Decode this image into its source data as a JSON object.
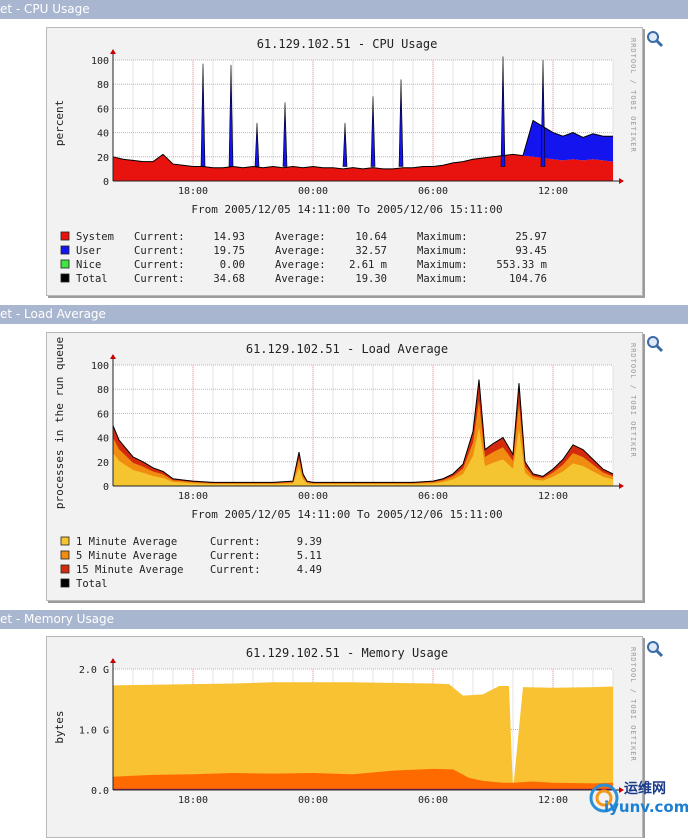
{
  "colors": {
    "header_bg": "#a9b6cf",
    "system": "#e8130e",
    "user": "#1414ee",
    "nice": "#3fe63f",
    "total": "#000000",
    "load1": "#f5c431",
    "load5": "#f08c0f",
    "load15": "#d42b0e",
    "mem_free": "#f9c233",
    "mem_used": "#ff6a00"
  },
  "sections": [
    {
      "header": "et - CPU Usage",
      "chart_title": "61.129.102.51 - CPU Usage",
      "ylabel": "percent",
      "side_text": "RRDTOOL / TOBI OETIKER",
      "range_text": "From 2005/12/05 14:11:00 To 2005/12/06 15:11:00",
      "legend": [
        {
          "color": "#e8130e",
          "name": "System",
          "cur_label": "Current:",
          "cur": "14.93",
          "avg_label": "Average:",
          "avg": "10.64",
          "max_label": "Maximum:",
          "max": "25.97"
        },
        {
          "color": "#1414ee",
          "name": "User",
          "cur_label": "Current:",
          "cur": "19.75",
          "avg_label": "Average:",
          "avg": "32.57",
          "max_label": "Maximum:",
          "max": "93.45"
        },
        {
          "color": "#3fe63f",
          "name": "Nice",
          "cur_label": "Current:",
          "cur": "0.00",
          "avg_label": "Average:",
          "avg": "2.61 m",
          "max_label": "Maximum:",
          "max": "553.33 m"
        },
        {
          "color": "#000000",
          "name": "Total",
          "cur_label": "Current:",
          "cur": "34.68",
          "avg_label": "Average:",
          "avg": "19.30",
          "max_label": "Maximum:",
          "max": "104.76"
        }
      ]
    },
    {
      "header": "et - Load Average",
      "chart_title": "61.129.102.51 - Load Average",
      "ylabel": "processes in the run queue",
      "side_text": "RRDTOOL / TOBI OETIKER",
      "range_text": "From 2005/12/05 14:11:00 To 2005/12/06 15:11:00",
      "legend": [
        {
          "color": "#f5c431",
          "name": "1 Minute Average",
          "cur_label": "Current:",
          "cur": "9.39"
        },
        {
          "color": "#f08c0f",
          "name": "5 Minute Average",
          "cur_label": "Current:",
          "cur": "5.11"
        },
        {
          "color": "#d42b0e",
          "name": "15 Minute Average",
          "cur_label": "Current:",
          "cur": "4.49"
        },
        {
          "color": "#000000",
          "name": "Total",
          "cur_label": "",
          "cur": ""
        }
      ]
    },
    {
      "header": "et - Memory Usage",
      "chart_title": "61.129.102.51 - Memory Usage",
      "ylabel": "bytes",
      "side_text": "RRDTOOL / TOBI OETIKER",
      "range_text": "",
      "legend": []
    }
  ],
  "watermark": "iyunv.com",
  "watermark_cn": "运维网",
  "chart_data": [
    {
      "type": "area",
      "title": "61.129.102.51 - CPU Usage",
      "ylabel": "percent",
      "xticks": [
        "18:00",
        "00:00",
        "06:00",
        "12:00"
      ],
      "xtick_pos": [
        4,
        10,
        16,
        22
      ],
      "xlim": [
        0,
        25
      ],
      "ylim": [
        0,
        100
      ],
      "yticks": [
        0,
        20,
        40,
        60,
        80,
        100
      ],
      "stacked": true,
      "series": [
        {
          "name": "System",
          "color": "#e8130e",
          "x": [
            0,
            0.5,
            1,
            1.5,
            2,
            2.5,
            3,
            3.5,
            4,
            4.5,
            5,
            5.5,
            6,
            6.5,
            7,
            7.5,
            8,
            8.5,
            9,
            9.5,
            10,
            10.5,
            11,
            11.5,
            12,
            12.5,
            13,
            13.5,
            14,
            14.5,
            15,
            15.5,
            16,
            16.5,
            17,
            17.5,
            18,
            18.5,
            19,
            19.5,
            20,
            20.5,
            21,
            21.5,
            22,
            22.5,
            23,
            23.5,
            24,
            24.5,
            25
          ],
          "values": [
            20,
            18,
            17,
            16,
            16,
            22,
            14,
            13,
            12,
            12,
            11,
            11,
            12,
            11,
            12,
            11,
            12,
            11,
            12,
            11,
            12,
            11,
            11,
            10,
            11,
            10,
            11,
            10,
            10,
            11,
            11,
            12,
            12,
            13,
            15,
            16,
            18,
            19,
            20,
            21,
            22,
            21,
            20,
            19,
            18,
            17,
            18,
            17,
            18,
            17,
            16
          ]
        },
        {
          "name": "User",
          "color": "#1414ee",
          "x": [
            0,
            0.5,
            1,
            1.5,
            2,
            2.5,
            3,
            3.5,
            4,
            4.5,
            5,
            5.5,
            6,
            6.5,
            7,
            7.5,
            8,
            8.5,
            9,
            9.5,
            10,
            10.5,
            11,
            11.5,
            12,
            12.5,
            13,
            13.5,
            14,
            14.5,
            15,
            15.5,
            16,
            16.5,
            17,
            17.5,
            18,
            18.5,
            19,
            19.5,
            20,
            20.5,
            21,
            21.5,
            22,
            22.5,
            23,
            23.5,
            24,
            24.5,
            25
          ],
          "values": [
            0,
            0,
            0,
            0,
            0,
            0,
            0,
            0,
            0,
            0,
            0,
            0,
            0,
            0,
            0,
            0,
            0,
            0,
            0,
            0,
            0,
            0,
            0,
            0,
            0,
            0,
            0,
            0,
            0,
            0,
            0,
            0,
            0,
            0,
            0,
            0,
            0,
            0,
            0,
            0,
            0,
            0,
            30,
            26,
            22,
            20,
            22,
            19,
            21,
            20,
            21
          ]
        },
        {
          "name": "Nice",
          "color": "#3fe63f",
          "values": []
        }
      ],
      "spikes": [
        {
          "x": 4.5,
          "y": 97
        },
        {
          "x": 5.9,
          "y": 96
        },
        {
          "x": 7.2,
          "y": 48
        },
        {
          "x": 8.6,
          "y": 65
        },
        {
          "x": 11.6,
          "y": 48
        },
        {
          "x": 13.0,
          "y": 70
        },
        {
          "x": 14.4,
          "y": 84
        },
        {
          "x": 19.5,
          "y": 103
        },
        {
          "x": 21.5,
          "y": 100
        }
      ]
    },
    {
      "type": "area",
      "title": "61.129.102.51 - Load Average",
      "ylabel": "processes in the run queue",
      "xticks": [
        "18:00",
        "00:00",
        "06:00",
        "12:00"
      ],
      "xtick_pos": [
        4,
        10,
        16,
        22
      ],
      "xlim": [
        0,
        25
      ],
      "ylim": [
        0,
        100
      ],
      "yticks": [
        0,
        20,
        40,
        60,
        80,
        100
      ],
      "series": [
        {
          "name": "1 Minute Average",
          "color": "#f5c431",
          "x": [
            0,
            0.3,
            0.6,
            1,
            1.5,
            2,
            2.5,
            3,
            3.5,
            4,
            5,
            6,
            7,
            8,
            9,
            9.3,
            9.5,
            9.7,
            10,
            11,
            12,
            13,
            14,
            15,
            16,
            16.5,
            17,
            17.5,
            18,
            18.3,
            18.6,
            19,
            19.5,
            20,
            20.3,
            20.6,
            21,
            21.5,
            22,
            22.5,
            23,
            23.5,
            24,
            24.5,
            25
          ],
          "values": [
            50,
            38,
            32,
            24,
            20,
            15,
            12,
            6,
            5,
            4,
            3,
            3,
            3,
            3,
            4,
            28,
            10,
            4,
            3,
            3,
            3,
            3,
            3,
            3,
            4,
            6,
            10,
            18,
            45,
            88,
            30,
            35,
            40,
            26,
            85,
            20,
            10,
            8,
            14,
            22,
            34,
            30,
            22,
            14,
            10
          ]
        },
        {
          "name": "5 Minute Average",
          "color": "#f08c0f",
          "x": [
            0,
            1,
            2,
            3,
            4,
            5,
            9,
            10,
            16,
            17,
            18,
            19,
            20,
            21,
            22,
            23,
            24,
            25
          ],
          "values": [
            32,
            28,
            20,
            10,
            6,
            4,
            4,
            4,
            4,
            8,
            20,
            28,
            30,
            14,
            18,
            26,
            20,
            12
          ]
        },
        {
          "name": "15 Minute Average",
          "color": "#d42b0e",
          "x": [
            0,
            1,
            2,
            3,
            4,
            5,
            9,
            10,
            16,
            17,
            18,
            19,
            20,
            21,
            22,
            23,
            24,
            25
          ],
          "values": [
            22,
            20,
            16,
            10,
            6,
            4,
            4,
            4,
            4,
            6,
            14,
            20,
            22,
            14,
            14,
            20,
            18,
            12
          ]
        }
      ]
    },
    {
      "type": "area",
      "title": "61.129.102.51 - Memory Usage",
      "ylabel": "bytes",
      "xticks": [
        "18:00",
        "00:00",
        "06:00",
        "12:00"
      ],
      "xtick_pos": [
        4,
        10,
        16,
        22
      ],
      "xlim": [
        0,
        25
      ],
      "yticks": [
        "0.0",
        "1.0 G",
        "2.0 G"
      ],
      "ylim": [
        0,
        2.0
      ],
      "series": [
        {
          "name": "",
          "color": "#f9c233",
          "x": [
            0,
            2,
            4,
            6,
            8,
            10,
            12,
            14,
            16,
            16.8,
            17.5,
            18.5,
            19.3,
            19.8,
            20,
            20.5,
            22,
            24,
            25
          ],
          "values": [
            1.73,
            1.74,
            1.75,
            1.76,
            1.78,
            1.78,
            1.78,
            1.77,
            1.76,
            1.75,
            1.56,
            1.58,
            1.72,
            1.72,
            0,
            1.7,
            1.69,
            1.7,
            1.71
          ]
        },
        {
          "name": "",
          "color": "#ff6a00",
          "x": [
            0,
            2,
            4,
            6,
            8,
            10,
            12,
            14,
            16,
            17,
            17.8,
            18.5,
            19.5,
            20,
            21,
            22,
            24,
            25
          ],
          "values": [
            0.22,
            0.25,
            0.26,
            0.28,
            0.27,
            0.28,
            0.26,
            0.32,
            0.35,
            0.34,
            0.2,
            0.15,
            0.12,
            0.12,
            0.14,
            0.12,
            0.11,
            0.12
          ]
        }
      ]
    }
  ]
}
